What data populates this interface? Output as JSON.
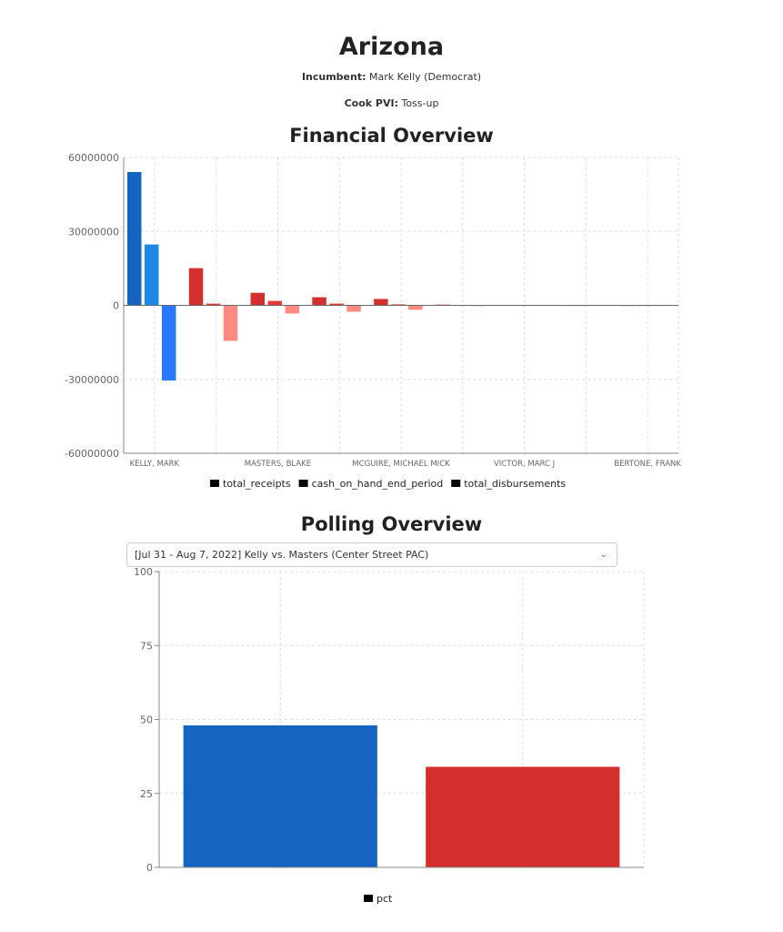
{
  "header": {
    "title": "Arizona",
    "incumbent_label": "Incumbent:",
    "incumbent_value": "Mark Kelly (Democrat)",
    "pvi_label": "Cook PVI:",
    "pvi_value": "Toss-up"
  },
  "financial": {
    "title": "Financial Overview"
  },
  "polling": {
    "title": "Polling Overview",
    "selected_poll": "[Jul 31 - Aug 7, 2022] Kelly vs. Masters (Center Street PAC)",
    "chevron_icon": "chevron-down-icon"
  },
  "chart_data": [
    {
      "type": "bar",
      "ylim": [
        -60000000,
        60000000
      ],
      "yticks": [
        60000000,
        30000000,
        0,
        -30000000,
        -60000000
      ],
      "grid": true,
      "legend_placement": "bottom",
      "categories": [
        "KELLY, MARK",
        "",
        "MASTERS, BLAKE",
        "",
        "MCGUIRE, MICHAEL MICK",
        "",
        "VICTOR, MARC J",
        "",
        "BERTONE, FRANK"
      ],
      "series": [
        {
          "name": "total_receipts",
          "values": [
            54100000,
            15100000,
            5100000,
            3300000,
            2600000,
            300000,
            50000,
            30000,
            0
          ]
        },
        {
          "name": "cash_on_hand_end_period",
          "values": [
            24700000,
            700000,
            1800000,
            700000,
            400000,
            100000,
            20000,
            10000,
            0
          ]
        },
        {
          "name": "total_disbursements",
          "values": [
            -30500000,
            -14400000,
            -3300000,
            -2600000,
            -1800000,
            -200000,
            -40000,
            -20000,
            0
          ]
        }
      ],
      "colors": [
        [
          "#1565c0",
          "#1e88e5",
          "#2979ff"
        ],
        [
          "#d32f2f",
          "#e53935",
          "#ff8a80"
        ],
        [
          "#d32f2f",
          "#e53935",
          "#ff8a80"
        ],
        [
          "#d32f2f",
          "#e53935",
          "#ff8a80"
        ],
        [
          "#d32f2f",
          "#e53935",
          "#ff8a80"
        ],
        [
          "#d32f2f",
          "#e53935",
          "#ff8a80"
        ],
        [
          "#d4b36a",
          "#e0c68a",
          "#ecd9a8"
        ],
        [
          "#d4b36a",
          "#e0c68a",
          "#ecd9a8"
        ],
        [
          "#aaaaaa",
          "#bbbbbb",
          "#cccccc"
        ]
      ]
    },
    {
      "type": "bar",
      "ylim": [
        0,
        100
      ],
      "yticks": [
        0,
        25,
        50,
        75,
        100
      ],
      "grid": true,
      "legend_placement": "bottom",
      "series": [
        {
          "name": "pct",
          "values": [
            48,
            34
          ]
        }
      ],
      "colors": [
        "#1565c0",
        "#d32f2f"
      ]
    }
  ]
}
